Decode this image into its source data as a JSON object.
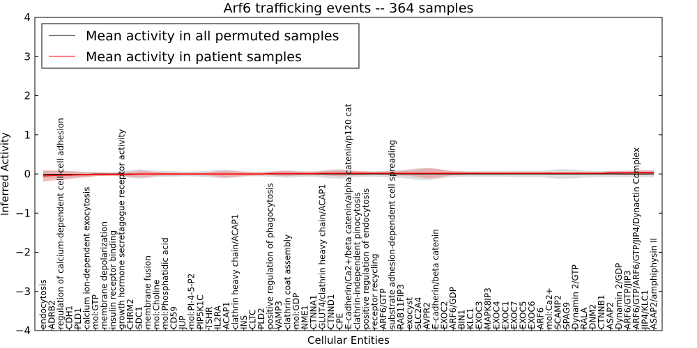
{
  "chart_data": {
    "type": "line",
    "title": "Arf6 trafficking events -- 364 samples",
    "xlabel": "Cellular Entities",
    "ylabel": "Inferred Activity",
    "ylim": [
      -4,
      4
    ],
    "yticks": [
      "4",
      "3",
      "2",
      "1",
      "0",
      "−1",
      "−2",
      "−3",
      "−4"
    ],
    "legend_position": "top-left",
    "colors": {
      "permuted": "#000000",
      "patient": "#ff0000",
      "patient_band": "#e88a8a",
      "permuted_band": "#cfcfcf"
    },
    "categories": [
      "endocytosis",
      "ADRB2",
      "regulation of calcium-dependent cell-cell adhesion",
      "CDH1",
      "PLD1",
      "calcium ion-dependent exocytosis",
      "mol:GTP",
      "membrane depolarization",
      "insulin receptor binding",
      "growth hormone secretagogue receptor activity",
      "CHRM2",
      "SDC1",
      "membrane fusion",
      "mol:Choline",
      "mol:Phosphatidic acid",
      "CD59",
      "JUP",
      "mol:PI-4-5-P2",
      "PIP5K1C",
      "TSHR",
      "IL2RA",
      "ACAP1",
      "clathrin heavy chain/ACAP1",
      "INS",
      "CLTC",
      "PLD2",
      "positive regulation of phagocytosis",
      "VAMP3",
      "clathrin coat assembly",
      "mol:GDP",
      "NME1",
      "CTNNA1",
      "GLUT4/clathrin heavy chain/ACAP1",
      "CTNND1",
      "CPE",
      "E-cadherin/Ca2+/beta catenin/alpha catenin/p120 cat",
      "clathrin-independent pinocytosis",
      "positive regulation of endocytosis",
      "receptor recycling",
      "ARF6/GTP",
      "substrate adhesion-dependent cell spreading",
      "RAB11FIP3",
      "exocyst",
      "SLC2A4",
      "AVPR2",
      "E-cadherin/beta catenin",
      "EXOC2",
      "ARF6/GDP",
      "BIN1",
      "KLC1",
      "EXOC3",
      "MAPK8IP3",
      "EXOC4",
      "EXOC1",
      "EXOC7",
      "EXOC5",
      "EXOC6",
      "ARF6",
      "mol:Ca2+",
      "SCAMP2",
      "SPAG9",
      "Dynamin 2/GTP",
      "RALA",
      "DNM2",
      "CTNNB1",
      "ASAP2",
      "Dynamin 2/GDP",
      "ARF6/GTP/JIP3",
      "ARF6/GTP/ARF6/GTP/JIP4/Dynactin Complex",
      "JIP4/KLC1",
      "ASAP2/amphiphysin II"
    ],
    "series": [
      {
        "name": "Mean activity in all permuted samples",
        "color": "#000000",
        "values": [
          -0.01,
          -0.01,
          -0.01,
          -0.01,
          -0.01,
          -0.01,
          0.0,
          0.0,
          0.0,
          0.0,
          0.0,
          0.0,
          0.0,
          0.0,
          0.0,
          0.0,
          0.0,
          0.0,
          0.0,
          0.0,
          0.0,
          0.0,
          0.0,
          0.0,
          0.0,
          0.0,
          0.0,
          0.0,
          0.0,
          0.0,
          0.0,
          0.0,
          0.0,
          0.0,
          0.0,
          0.0,
          0.0,
          0.0,
          0.0,
          0.0,
          0.0,
          0.0,
          0.0,
          0.0,
          0.0,
          0.0,
          0.0,
          0.0,
          0.0,
          0.0,
          0.0,
          0.0,
          0.0,
          0.0,
          0.0,
          0.0,
          0.0,
          0.0,
          0.0,
          0.0,
          0.0,
          0.0,
          0.0,
          0.0,
          0.0,
          0.0,
          0.0,
          0.0,
          0.0,
          0.0,
          0.0
        ]
      },
      {
        "name": "Mean activity in patient samples",
        "color": "#ff0000",
        "values": [
          -0.05,
          -0.04,
          -0.03,
          -0.03,
          -0.02,
          -0.02,
          -0.01,
          -0.01,
          -0.01,
          -0.01,
          -0.01,
          0.0,
          0.0,
          0.0,
          0.0,
          0.0,
          0.0,
          0.0,
          0.0,
          0.0,
          0.0,
          0.0,
          0.0,
          0.0,
          0.0,
          0.0,
          0.01,
          0.01,
          0.01,
          0.01,
          0.01,
          0.01,
          0.02,
          0.02,
          0.02,
          0.02,
          0.02,
          0.02,
          0.02,
          0.02,
          0.02,
          0.02,
          0.02,
          0.02,
          0.02,
          0.02,
          0.02,
          0.02,
          0.02,
          0.02,
          0.02,
          0.02,
          0.02,
          0.02,
          0.02,
          0.02,
          0.02,
          0.02,
          0.02,
          0.02,
          0.02,
          0.02,
          0.02,
          0.02,
          0.02,
          0.03,
          0.03,
          0.03,
          0.04,
          0.04,
          0.04
        ]
      }
    ],
    "patient_band_halfwidth": [
      0.14,
      0.13,
      0.12,
      0.1,
      0.08,
      0.06,
      0.05,
      0.04,
      0.03,
      0.04,
      0.06,
      0.08,
      0.07,
      0.05,
      0.04,
      0.04,
      0.03,
      0.03,
      0.03,
      0.04,
      0.07,
      0.08,
      0.07,
      0.05,
      0.04,
      0.03,
      0.04,
      0.06,
      0.07,
      0.05,
      0.04,
      0.04,
      0.05,
      0.07,
      0.08,
      0.07,
      0.05,
      0.04,
      0.03,
      0.04,
      0.05,
      0.06,
      0.07,
      0.1,
      0.13,
      0.12,
      0.08,
      0.05,
      0.04,
      0.03,
      0.03,
      0.03,
      0.03,
      0.03,
      0.03,
      0.03,
      0.03,
      0.03,
      0.03,
      0.03,
      0.03,
      0.03,
      0.03,
      0.03,
      0.03,
      0.04,
      0.05,
      0.05,
      0.06,
      0.06,
      0.06
    ],
    "permuted_band_halfwidth": [
      0.1,
      0.1,
      0.09,
      0.08,
      0.07,
      0.06,
      0.05,
      0.05,
      0.05,
      0.07,
      0.1,
      0.12,
      0.1,
      0.08,
      0.07,
      0.07,
      0.06,
      0.06,
      0.07,
      0.08,
      0.1,
      0.11,
      0.09,
      0.07,
      0.06,
      0.06,
      0.07,
      0.08,
      0.09,
      0.08,
      0.07,
      0.07,
      0.09,
      0.11,
      0.12,
      0.1,
      0.08,
      0.07,
      0.07,
      0.08,
      0.09,
      0.1,
      0.12,
      0.15,
      0.16,
      0.13,
      0.1,
      0.08,
      0.07,
      0.07,
      0.07,
      0.07,
      0.07,
      0.07,
      0.08,
      0.08,
      0.08,
      0.08,
      0.1,
      0.12,
      0.12,
      0.11,
      0.09,
      0.08,
      0.08,
      0.08,
      0.08,
      0.08,
      0.08,
      0.08,
      0.08
    ]
  }
}
